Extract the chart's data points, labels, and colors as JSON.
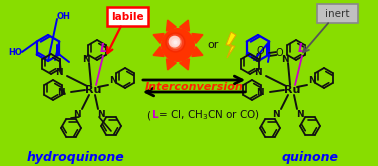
{
  "bg_color": "#88dd00",
  "left_label": "hydroquinone",
  "right_label": "quinone",
  "labile_text": "labile",
  "inert_text": "inert",
  "interconversion_text": "Interconversion",
  "or_text": "or",
  "arrow_color": "#000000",
  "interconversion_color": "#ff2200",
  "label_color": "#0000ff",
  "labile_color": "#ff0000",
  "labile_border": "#ff0000",
  "inert_color": "#444444",
  "inert_bg": "#bbbbbb",
  "L_color": "#cc00cc",
  "sun_body_color": "#ff3300",
  "sun_center_color": "#ffbbbb",
  "sun_highlight": "#ffffff",
  "lightning_color": "#ffee00",
  "lightning_edge": "#ddaa00",
  "struct_color": "#111111",
  "blue_bond_color": "#0000ee",
  "figsize": [
    3.78,
    1.66
  ],
  "dpi": 100
}
